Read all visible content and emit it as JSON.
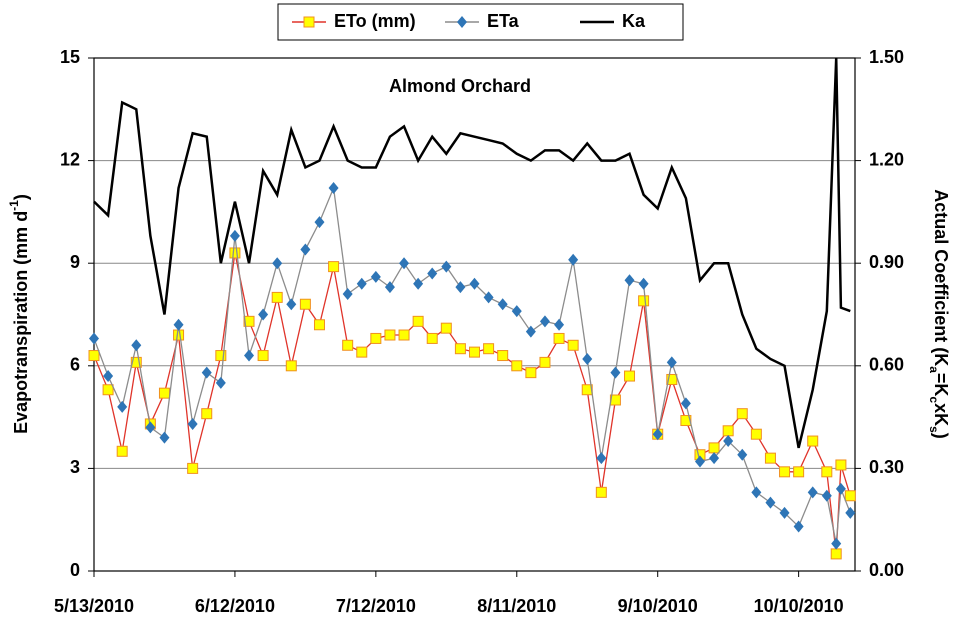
{
  "chart_data": {
    "type": "line",
    "title": "Almond Orchard",
    "y_label": [
      "Evapotranspiration (mm d",
      "-1",
      ")"
    ],
    "y2_label": [
      "Actual  Coefficient (K",
      "a",
      "=K",
      "c",
      "xK",
      "s",
      ")"
    ],
    "x": [
      "5/13/2010",
      "5/16/2010",
      "5/19/2010",
      "5/22/2010",
      "5/25/2010",
      "5/28/2010",
      "5/31/2010",
      "6/3/2010",
      "6/6/2010",
      "6/9/2010",
      "6/12/2010",
      "6/15/2010",
      "6/18/2010",
      "6/21/2010",
      "6/24/2010",
      "6/27/2010",
      "6/30/2010",
      "7/3/2010",
      "7/6/2010",
      "7/9/2010",
      "7/12/2010",
      "7/15/2010",
      "7/18/2010",
      "7/21/2010",
      "7/24/2010",
      "7/27/2010",
      "7/30/2010",
      "8/2/2010",
      "8/5/2010",
      "8/8/2010",
      "8/11/2010",
      "8/14/2010",
      "8/17/2010",
      "8/20/2010",
      "8/23/2010",
      "8/26/2010",
      "8/29/2010",
      "9/1/2010",
      "9/4/2010",
      "9/7/2010",
      "9/10/2010",
      "9/13/2010",
      "9/16/2010",
      "9/19/2010",
      "9/22/2010",
      "9/25/2010",
      "9/28/2010",
      "10/1/2010",
      "10/4/2010",
      "10/7/2010",
      "10/10/2010",
      "10/13/2010",
      "10/16/2010",
      "10/18/2010",
      "10/19/2010",
      "10/21/2010"
    ],
    "series": [
      {
        "name": "ETo (mm)",
        "color": "#e0342a",
        "marker": "square",
        "marker_color": "#ffff00",
        "values": [
          6.3,
          5.3,
          3.5,
          6.1,
          4.3,
          5.2,
          6.9,
          3.0,
          4.6,
          6.3,
          9.3,
          7.3,
          6.3,
          8.0,
          6.0,
          7.8,
          7.2,
          8.9,
          6.6,
          6.4,
          6.8,
          6.9,
          6.9,
          7.3,
          6.8,
          7.1,
          6.5,
          6.4,
          6.5,
          6.3,
          6.0,
          5.8,
          6.1,
          6.8,
          6.6,
          5.3,
          2.3,
          5.0,
          5.7,
          7.9,
          4.0,
          5.6,
          4.4,
          3.4,
          3.6,
          4.1,
          4.6,
          4.0,
          3.3,
          2.9,
          2.9,
          3.8,
          2.9,
          0.5,
          3.1,
          2.2
        ]
      },
      {
        "name": "ETa",
        "color": "#8c8c8c",
        "marker": "diamond",
        "marker_color": "#2e75b6",
        "values": [
          6.8,
          5.7,
          4.8,
          6.6,
          4.2,
          3.9,
          7.2,
          4.3,
          5.8,
          5.5,
          9.8,
          6.3,
          7.5,
          9.0,
          7.8,
          9.4,
          10.2,
          11.2,
          8.1,
          8.4,
          8.6,
          8.3,
          9.0,
          8.4,
          8.7,
          8.9,
          8.3,
          8.4,
          8.0,
          7.8,
          7.6,
          7.0,
          7.3,
          7.2,
          9.1,
          6.2,
          3.3,
          5.8,
          8.5,
          8.4,
          4.0,
          6.1,
          4.9,
          3.2,
          3.3,
          3.8,
          3.4,
          2.3,
          2.0,
          1.7,
          1.3,
          2.3,
          2.2,
          0.8,
          2.4,
          1.7
        ]
      },
      {
        "name": "Ka",
        "color": "#000000",
        "axis": "y2",
        "values": [
          1.08,
          1.04,
          1.37,
          1.35,
          0.98,
          0.75,
          1.12,
          1.28,
          1.27,
          0.9,
          1.08,
          0.9,
          1.17,
          1.1,
          1.29,
          1.18,
          1.2,
          1.3,
          1.2,
          1.18,
          1.18,
          1.27,
          1.3,
          1.2,
          1.27,
          1.22,
          1.28,
          1.27,
          1.26,
          1.25,
          1.22,
          1.2,
          1.23,
          1.23,
          1.2,
          1.25,
          1.2,
          1.2,
          1.22,
          1.1,
          1.06,
          1.18,
          1.09,
          0.85,
          0.9,
          0.9,
          0.75,
          0.65,
          0.62,
          0.6,
          0.36,
          0.53,
          0.76,
          1.5,
          0.77,
          0.76
        ]
      }
    ],
    "xlim": [
      "5/13/2010",
      "10/22/2010"
    ],
    "xticks": [
      "5/13/2010",
      "6/12/2010",
      "7/12/2010",
      "8/11/2010",
      "9/10/2010",
      "10/10/2010"
    ],
    "ylim": [
      0,
      15
    ],
    "yticks": [
      0,
      3,
      6,
      9,
      12,
      15
    ],
    "y2lim": [
      0,
      1.5
    ],
    "y2ticks": [
      {
        "value": 0,
        "label": "0.00"
      },
      {
        "value": 0.3,
        "label": "0.30"
      },
      {
        "value": 0.6,
        "label": "0.60"
      },
      {
        "value": 0.9,
        "label": "0.90"
      },
      {
        "value": 1.2,
        "label": "1.20"
      },
      {
        "value": 1.5,
        "label": "1.50"
      }
    ],
    "grid": true
  }
}
